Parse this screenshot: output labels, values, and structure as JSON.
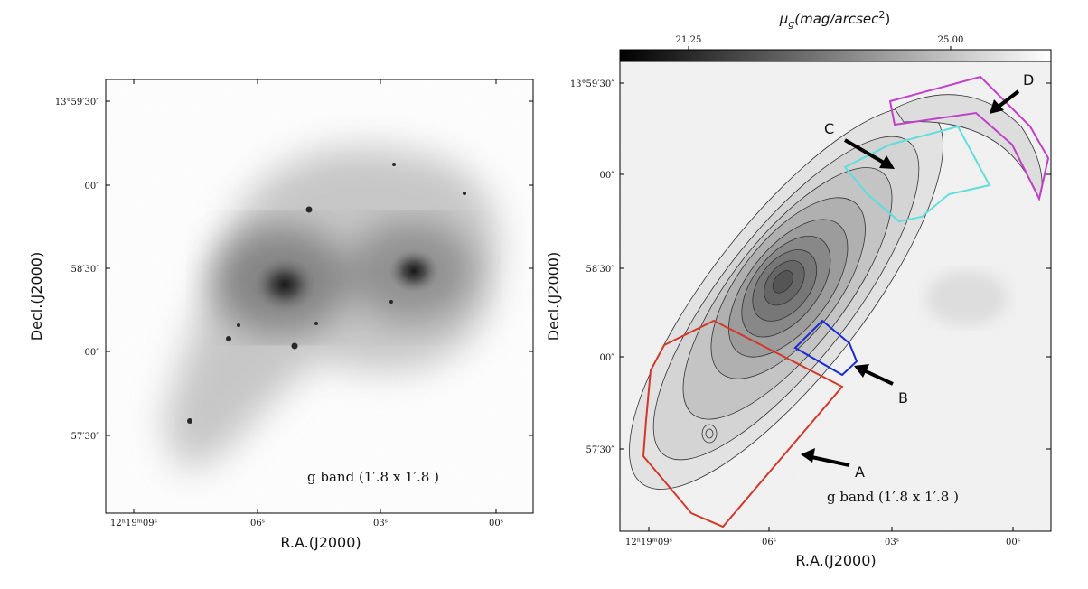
{
  "panels": [
    {
      "x_label": "R.A.(J2000)",
      "y_label": "Decl.(J2000)",
      "x_tick_labels": [
        "12ʰ19ᵐ09ˢ",
        "06ˢ",
        "03ˢ",
        "00ˢ"
      ],
      "y_tick_labels": [
        "13°59′30″",
        "00″",
        "58′30″",
        "00″",
        "57′30″"
      ],
      "caption": "g band  (1′.8 x 1′.8 )"
    },
    {
      "x_label": "R.A.(J2000)",
      "y_label": "Decl.(J2000)",
      "x_tick_labels": [
        "12ʰ19ᵐ09ˢ",
        "06ˢ",
        "03ˢ",
        "00ˢ"
      ],
      "y_tick_labels": [
        "13°59′30″",
        "00″",
        "58′30″",
        "00″",
        "57′30″"
      ],
      "caption": "g band  (1′.8 x 1′.8 )",
      "colorbar_label": [
        "μ",
        "g",
        "(mag/arcsec",
        "2",
        ")"
      ],
      "colorbar_ticks": [
        "21.25",
        "25.00"
      ],
      "region_labels": [
        "A",
        "B",
        "C",
        "D"
      ]
    }
  ]
}
